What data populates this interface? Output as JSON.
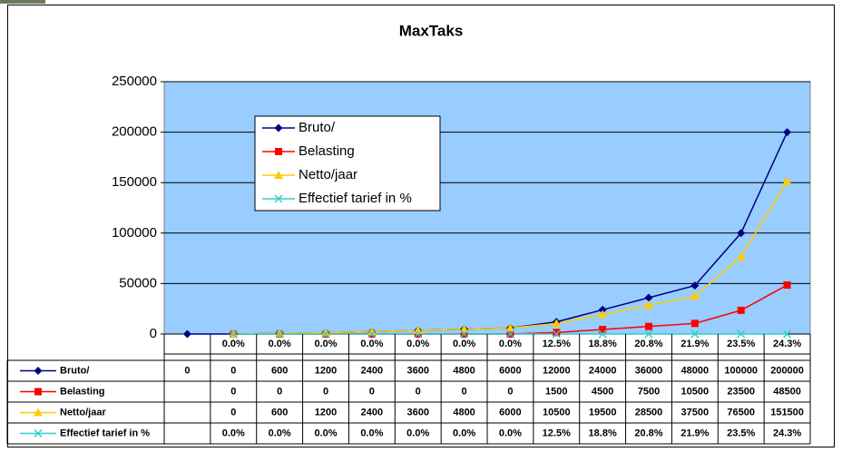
{
  "chart_data": {
    "type": "line",
    "title": "MaxTaks",
    "categories": [
      null,
      "0.0%",
      "0.0%",
      "0.0%",
      "0.0%",
      "0.0%",
      "0.0%",
      "0.0%",
      "12.5%",
      "18.8%",
      "20.8%",
      "21.9%",
      "23.5%",
      "24.3%"
    ],
    "series": [
      {
        "name": "Bruto/",
        "color": "#000080",
        "marker": "diamond",
        "values": [
          0,
          0,
          600,
          1200,
          2400,
          3600,
          4800,
          6000,
          12000,
          24000,
          36000,
          48000,
          100000,
          200000
        ]
      },
      {
        "name": "Belasting",
        "color": "#ff0000",
        "marker": "square",
        "values": [
          null,
          0,
          0,
          0,
          0,
          0,
          0,
          0,
          1500,
          4500,
          7500,
          10500,
          23500,
          48500
        ]
      },
      {
        "name": "Netto/jaar",
        "color": "#ffcc00",
        "marker": "triangle",
        "values": [
          null,
          0,
          600,
          1200,
          2400,
          3600,
          4800,
          6000,
          10500,
          19500,
          28500,
          37500,
          76500,
          151500
        ]
      },
      {
        "name": "Effectief tarief in %",
        "color": "#33cccc",
        "marker": "x",
        "values": [
          null,
          0,
          0,
          0,
          0,
          0,
          0,
          0,
          12.5,
          18.8,
          20.8,
          21.9,
          23.5,
          24.3
        ],
        "value_labels": [
          null,
          "0.0%",
          "0.0%",
          "0.0%",
          "0.0%",
          "0.0%",
          "0.0%",
          "0.0%",
          "12.5%",
          "18.8%",
          "20.8%",
          "21.9%",
          "23.5%",
          "24.3%"
        ]
      }
    ],
    "ylim": [
      0,
      250000
    ],
    "yticks": [
      0,
      50000,
      100000,
      150000,
      200000,
      250000
    ],
    "grid": true
  }
}
